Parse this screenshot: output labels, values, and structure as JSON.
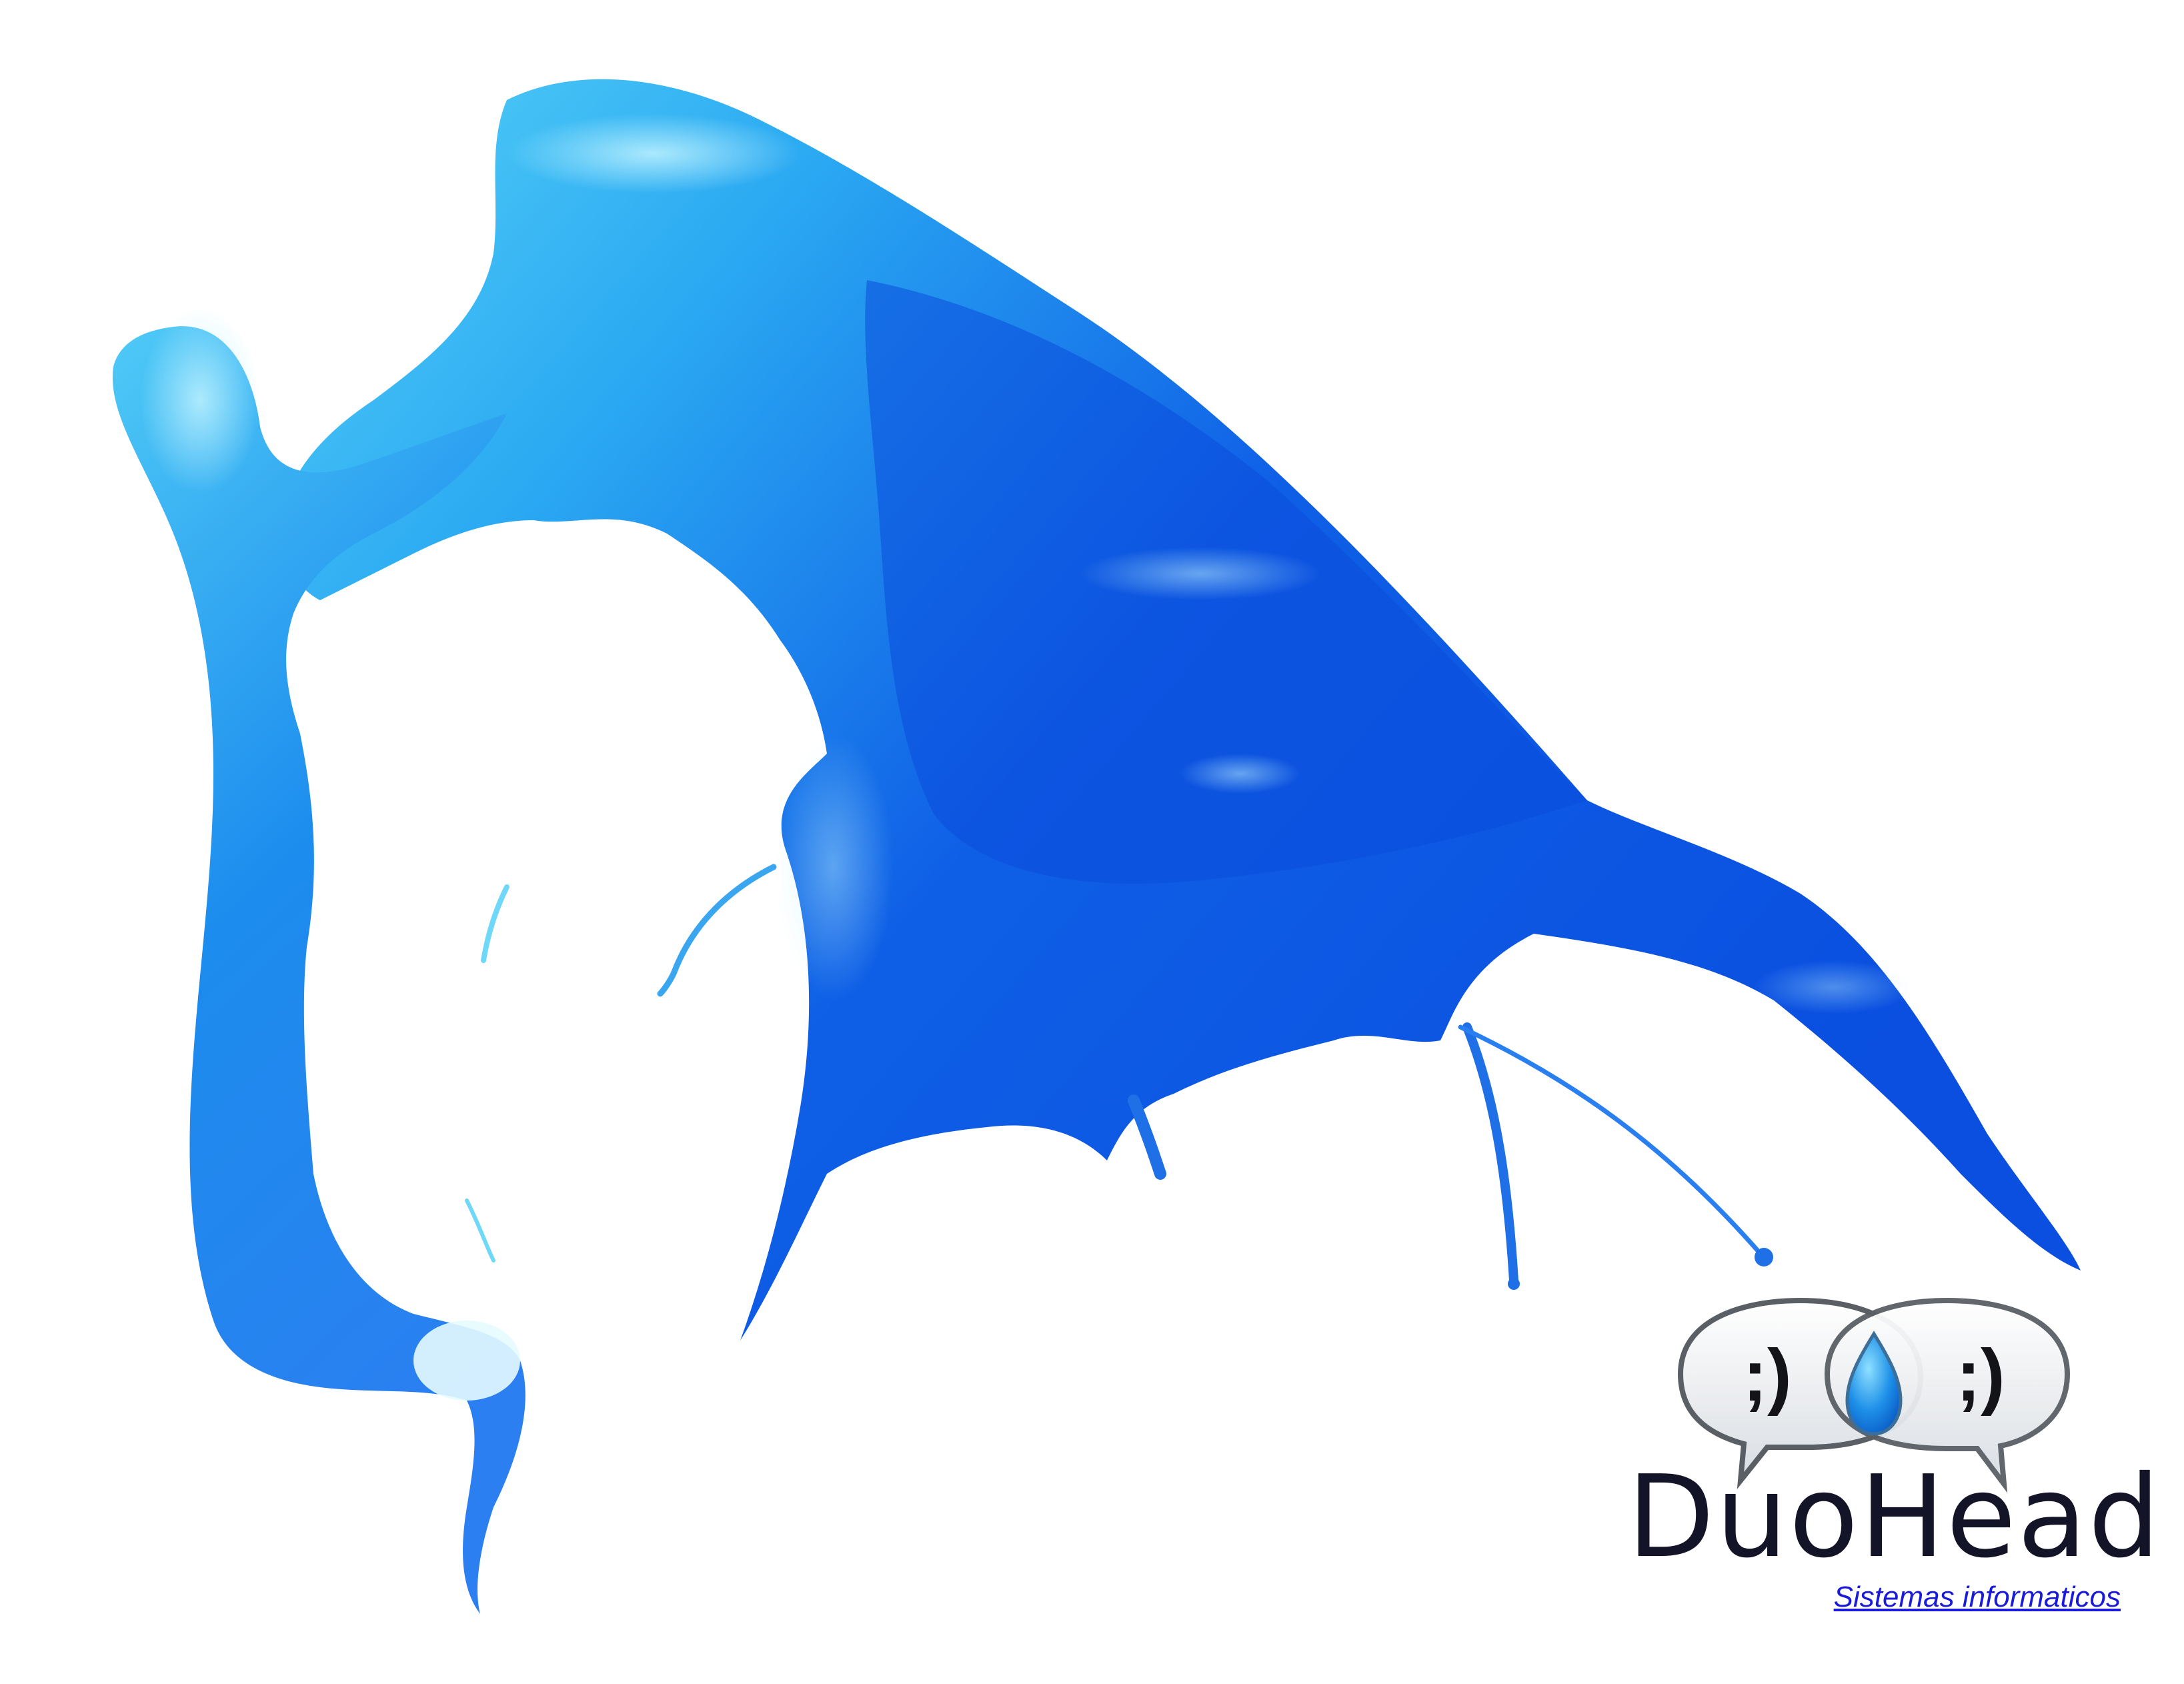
{
  "colors": {
    "splash_dark": "#0a4fe0",
    "splash_mid": "#1f7ef0",
    "splash_light": "#3fc7f5",
    "logo_text": "#141428",
    "link": "#1a1ad9"
  },
  "logo": {
    "left_bubble_face": ";)",
    "right_bubble_face": ";)",
    "brand_name": "DuoHead",
    "tagline": "Sistemas informaticos"
  }
}
